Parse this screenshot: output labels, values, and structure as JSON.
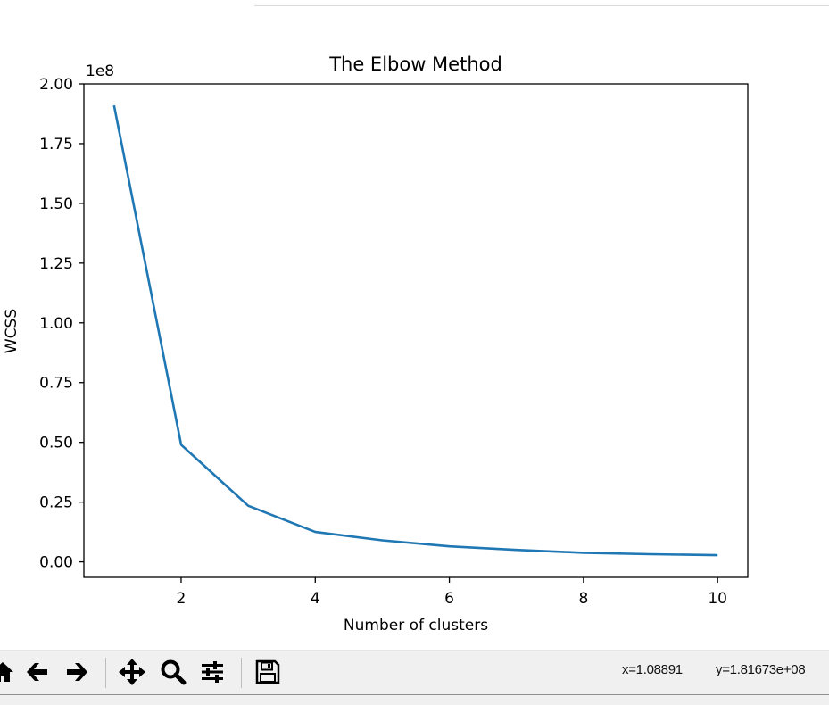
{
  "chart_data": {
    "type": "line",
    "title": "The Elbow Method",
    "xlabel": "Number of clusters",
    "ylabel": "WCSS",
    "offset_label": "1e8",
    "x": [
      1,
      2,
      3,
      4,
      5,
      6,
      7,
      8,
      9,
      10
    ],
    "y": [
      1.91,
      0.49,
      0.235,
      0.125,
      0.09,
      0.065,
      0.05,
      0.038,
      0.032,
      0.028
    ],
    "xlim": [
      0.55,
      10.45
    ],
    "ylim": [
      -0.065,
      2.0
    ],
    "xticks": [
      2,
      4,
      6,
      8,
      10
    ],
    "xtick_labels": [
      "2",
      "4",
      "6",
      "8",
      "10"
    ],
    "yticks": [
      0,
      0.25,
      0.5,
      0.75,
      1.0,
      1.25,
      1.5,
      1.75,
      2.0
    ],
    "ytick_labels": [
      "0.00",
      "0.25",
      "0.50",
      "0.75",
      "1.00",
      "1.25",
      "1.50",
      "1.75",
      "2.00"
    ],
    "line_color": "#1f77b4",
    "grid": false
  },
  "toolbar": {
    "buttons": [
      {
        "name": "home-button",
        "icon": "home-icon"
      },
      {
        "name": "back-button",
        "icon": "arrow-left-icon"
      },
      {
        "name": "forward-button",
        "icon": "arrow-right-icon"
      },
      {
        "name": "pan-button",
        "icon": "move-icon"
      },
      {
        "name": "zoom-button",
        "icon": "magnifier-icon"
      },
      {
        "name": "configure-subplots-button",
        "icon": "sliders-icon"
      },
      {
        "name": "save-button",
        "icon": "floppy-disk-icon"
      }
    ],
    "coord_x": "x=1.08891",
    "coord_y": "y=1.81673e+08"
  }
}
